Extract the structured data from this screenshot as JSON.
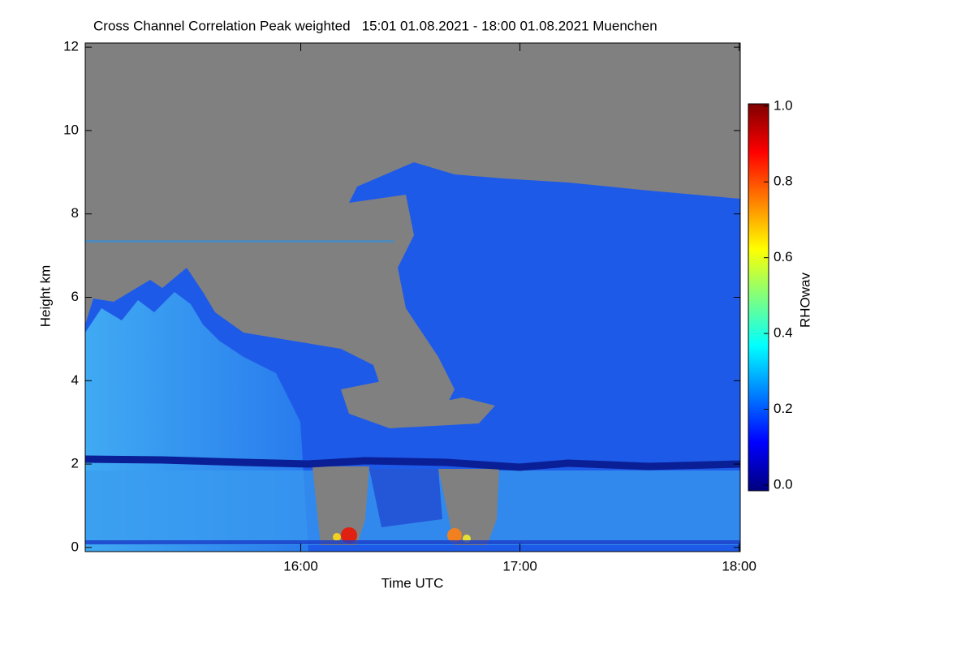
{
  "chart_data": {
    "type": "heatmap",
    "title": "Cross Channel Correlation Peak weighted   15:01 01.08.2021 - 18:00 01.08.2021 Muenchen",
    "xlabel": "Time UTC",
    "ylabel": "Height km",
    "colorbar_label": "RHOwav",
    "xlim": [
      15.0167,
      18.005
    ],
    "xticks": [
      {
        "value": 16,
        "label": "16:00"
      },
      {
        "value": 17,
        "label": "17:00"
      },
      {
        "value": 18,
        "label": "18:00"
      }
    ],
    "ylim": [
      -0.1,
      12.1
    ],
    "yticks": [
      0,
      2,
      4,
      6,
      8,
      10,
      12
    ],
    "clim": [
      -0.015,
      1.006
    ],
    "cticks": [
      {
        "value": 0,
        "label": "0.0"
      },
      {
        "value": 0.2,
        "label": "0.2"
      },
      {
        "value": 0.4,
        "label": "0.4"
      },
      {
        "value": 0.6,
        "label": "0.6"
      },
      {
        "value": 0.8,
        "label": "0.8"
      },
      {
        "value": 1,
        "label": "1.0"
      }
    ],
    "colormap": [
      "#00007f",
      "#0000ff",
      "#007fff",
      "#00ffff",
      "#7fff7f",
      "#ffff00",
      "#ff7f00",
      "#ff0000",
      "#7f0000"
    ],
    "missing_color": "#808080"
  }
}
